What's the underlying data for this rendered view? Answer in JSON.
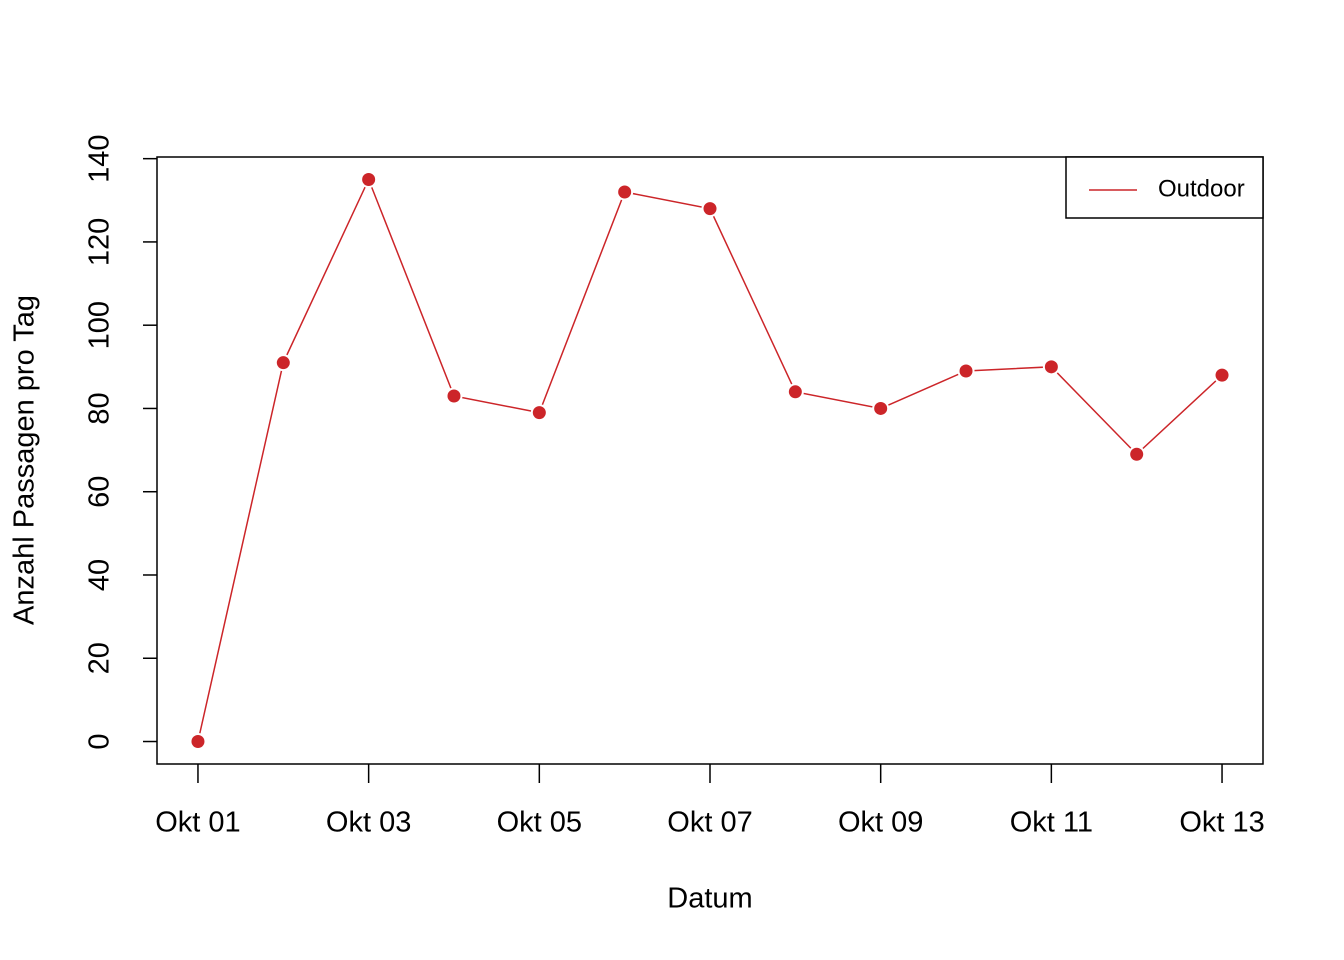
{
  "chart_data": {
    "type": "line",
    "x_label": "Datum",
    "y_label": "Anzahl Passagen pro Tag",
    "categories": [
      "Okt 01",
      null,
      "Okt 03",
      null,
      "Okt 05",
      null,
      "Okt 07",
      null,
      "Okt 09",
      null,
      "Okt 11",
      null,
      "Okt 13"
    ],
    "series": [
      {
        "name": "Outdoor",
        "color": "#cc2529",
        "values": [
          0,
          91,
          135,
          83,
          79,
          132,
          128,
          84,
          80,
          89,
          90,
          69,
          88
        ]
      }
    ],
    "ylim": [
      -5.4,
      140.4
    ],
    "yticks": [
      0,
      20,
      40,
      60,
      80,
      100,
      120,
      140
    ],
    "legend": "top-right",
    "markers": true
  }
}
